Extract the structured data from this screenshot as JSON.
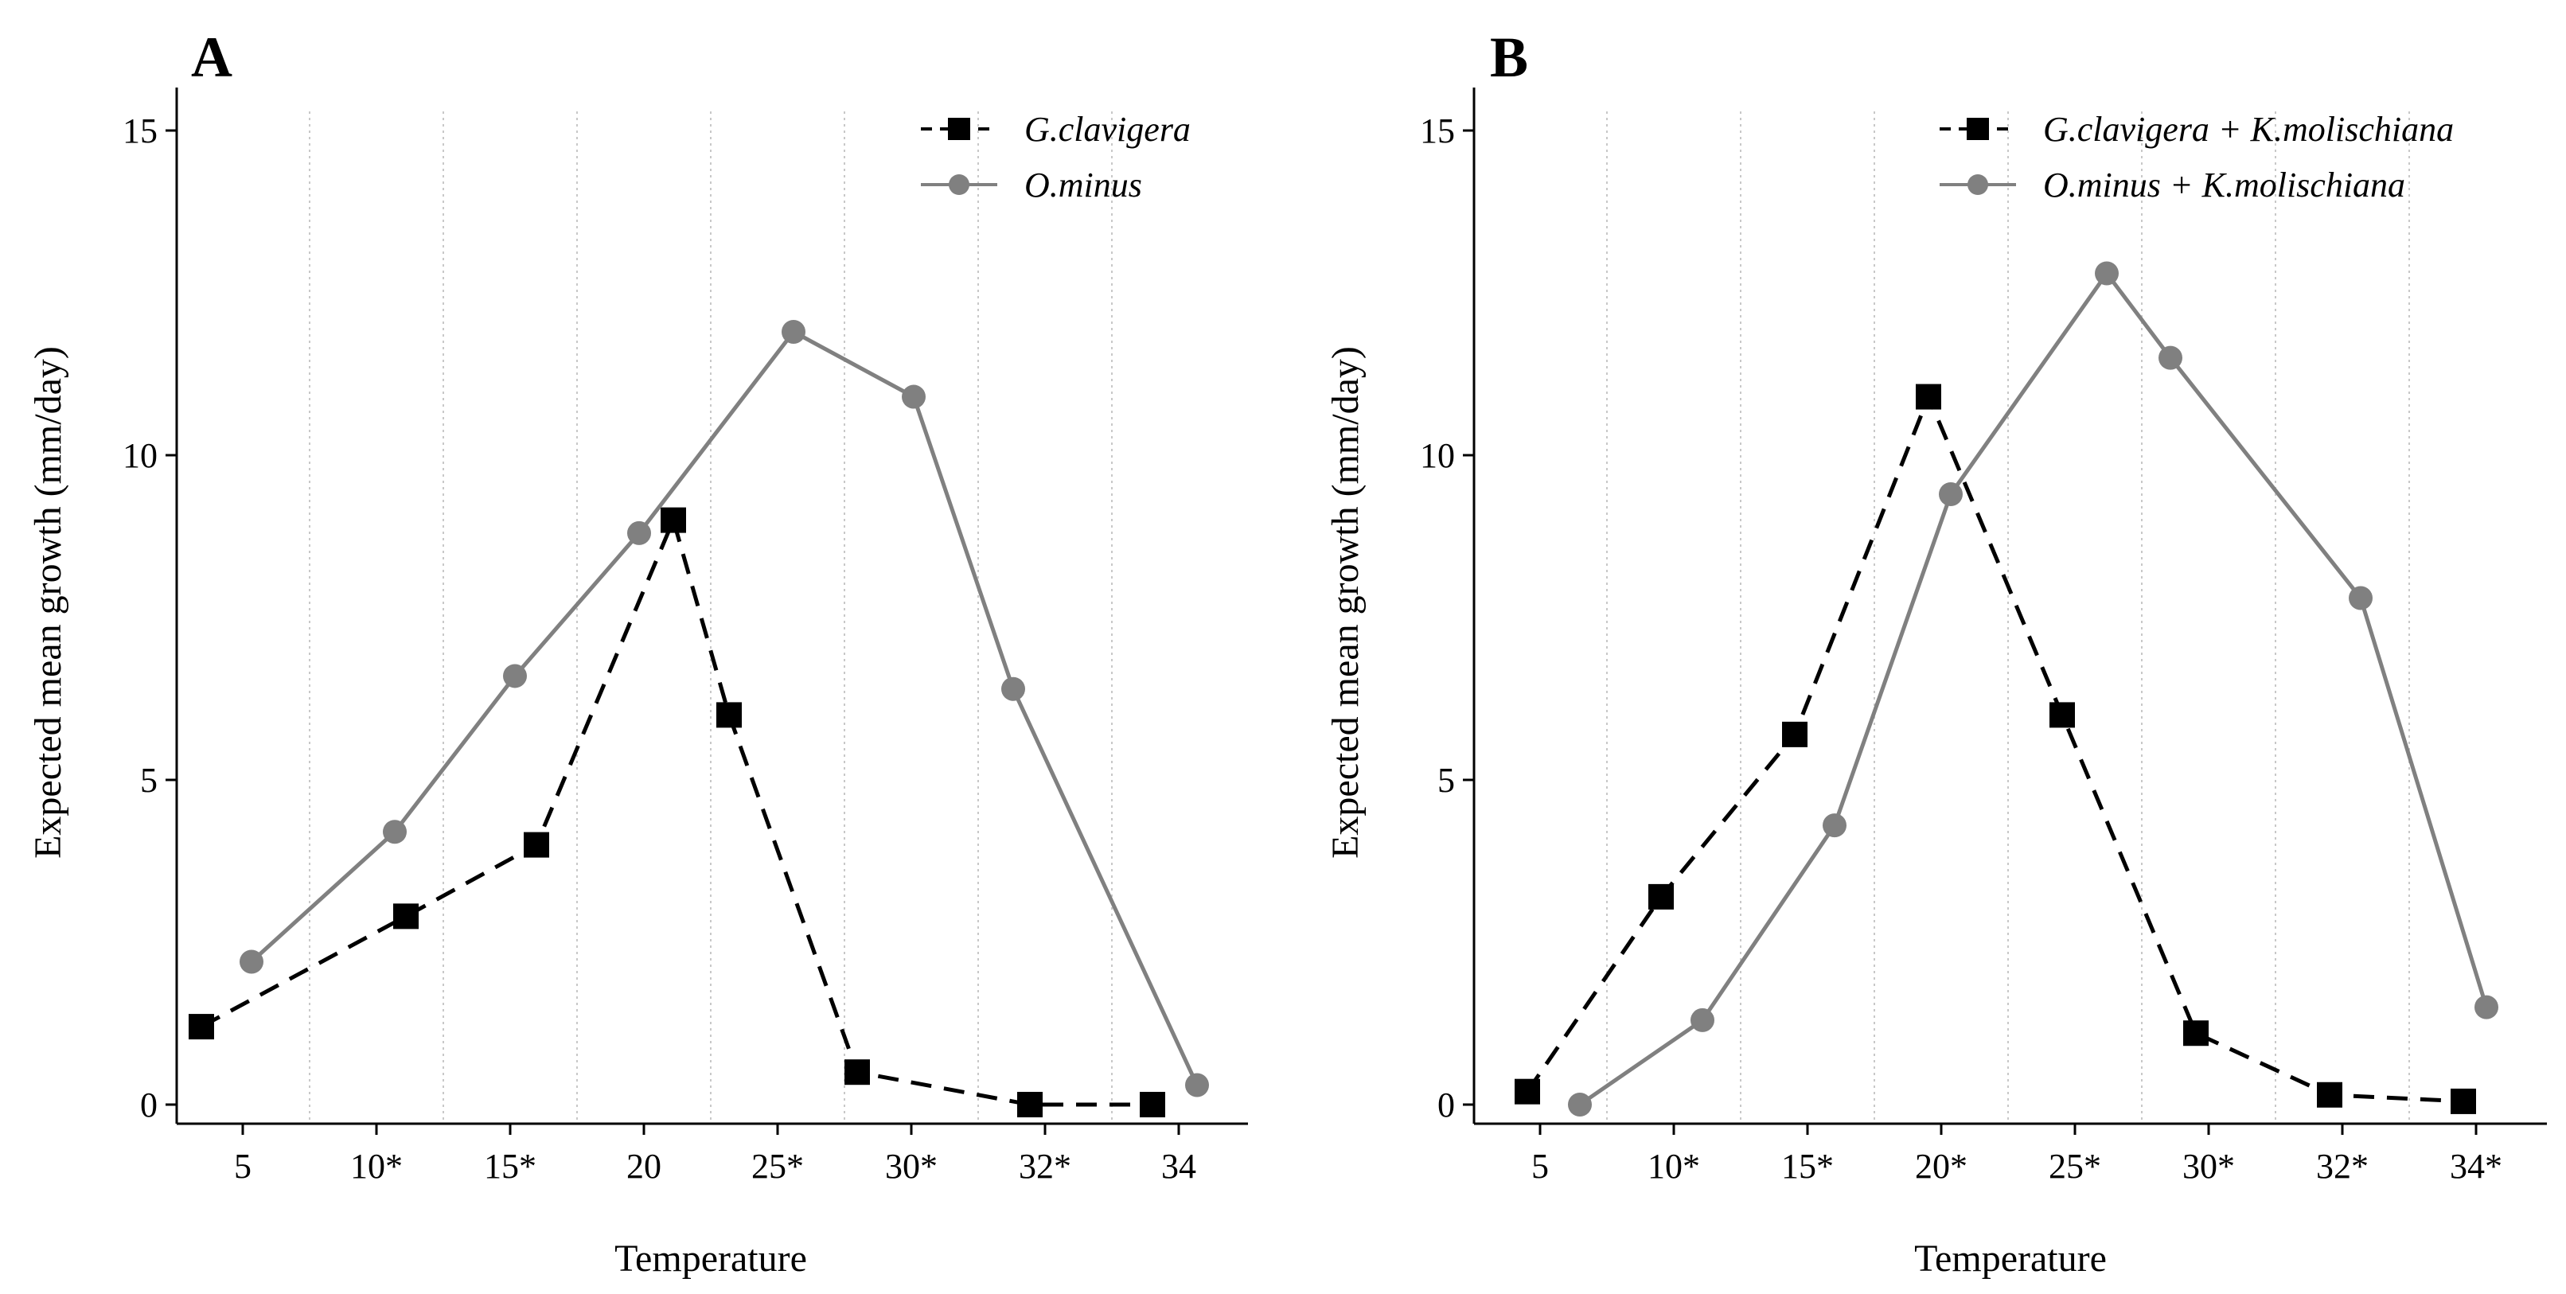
{
  "chart_data": [
    {
      "panel": "A",
      "type": "line",
      "xlabel": "Temperature",
      "ylabel": "Expected mean growth (mm/day)",
      "ylim": [
        0,
        15
      ],
      "yticks": [
        "0",
        "5",
        "10",
        "15"
      ],
      "categories": [
        "5",
        "10*",
        "15*",
        "20",
        "25*",
        "30*",
        "32*",
        "34"
      ],
      "grid": "vertical dotted lines between categories",
      "legend_position": "top-right",
      "series": [
        {
          "name": "G.clavigera",
          "style": "dashed",
          "marker": "square",
          "color": "#000000",
          "values": [
            1.2,
            2.9,
            4.0,
            9.0,
            6.0,
            0.5,
            0.0,
            0.0
          ]
        },
        {
          "name": "O.minus",
          "style": "solid",
          "marker": "circle",
          "color": "#808080",
          "values": [
            2.2,
            4.2,
            6.6,
            8.8,
            11.9,
            10.9,
            6.4,
            0.3
          ]
        }
      ]
    },
    {
      "panel": "B",
      "type": "line",
      "xlabel": "Temperature",
      "ylabel": "Expected mean growth (mm/day)",
      "ylim": [
        0,
        15
      ],
      "yticks": [
        "0",
        "5",
        "10",
        "15"
      ],
      "categories": [
        "5",
        "10*",
        "15*",
        "20*",
        "25*",
        "30*",
        "32*",
        "34*"
      ],
      "grid": "vertical dotted lines between categories",
      "legend_position": "top-right",
      "series": [
        {
          "name": "G.clavigera + K.molischiana",
          "style": "dashed",
          "marker": "square",
          "color": "#000000",
          "values": [
            0.2,
            3.2,
            5.7,
            10.9,
            6.0,
            1.1,
            0.15,
            0.05
          ]
        },
        {
          "name": "O.minus + K.molischiana",
          "style": "solid",
          "marker": "circle",
          "color": "#808080",
          "values": [
            0.0,
            1.3,
            4.3,
            9.4,
            12.8,
            11.5,
            7.8,
            1.5
          ]
        }
      ]
    }
  ]
}
